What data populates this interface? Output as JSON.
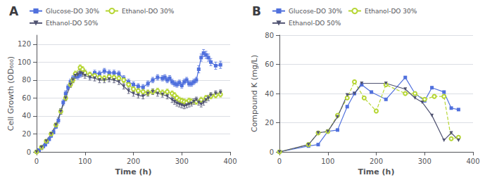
{
  "chart_data": [
    {
      "type": "line",
      "title": "A",
      "xlabel": "Time (h)",
      "ylabel": "Cell Growth (OD₆₀₀)",
      "xlim": [
        0,
        400
      ],
      "xticks": [
        0,
        100,
        200,
        300,
        400
      ],
      "ylim": [
        0,
        130
      ],
      "yticks": [
        0,
        20,
        40,
        60,
        80,
        100,
        120
      ],
      "grid": "y",
      "legend": "upper left",
      "series": [
        {
          "name": "Glucose-DO 30%",
          "marker": "square",
          "line_style": "solid",
          "x": [
            0,
            5,
            10,
            14,
            18,
            22,
            26,
            30,
            35,
            40,
            45,
            50,
            55,
            60,
            65,
            70,
            75,
            80,
            85,
            90,
            95,
            100,
            110,
            120,
            130,
            140,
            150,
            160,
            170,
            180,
            190,
            200,
            210,
            220,
            230,
            240,
            250,
            260,
            265,
            270,
            275,
            280,
            285,
            290,
            295,
            300,
            305,
            310,
            315,
            320,
            325,
            330,
            335,
            340,
            345,
            350,
            355,
            360,
            370,
            380
          ],
          "values": [
            0,
            2,
            4,
            6,
            8,
            11,
            14,
            18,
            22,
            28,
            35,
            45,
            55,
            65,
            72,
            78,
            82,
            85,
            84,
            86,
            90,
            88,
            85,
            88,
            87,
            90,
            88,
            88,
            87,
            82,
            78,
            75,
            73,
            72,
            76,
            80,
            83,
            82,
            83,
            80,
            82,
            78,
            76,
            75,
            77,
            74,
            78,
            80,
            76,
            76,
            78,
            80,
            92,
            105,
            110,
            108,
            105,
            100,
            96,
            97
          ],
          "error": [
            0,
            1,
            1,
            1,
            1,
            1,
            1,
            2,
            2,
            2,
            3,
            3,
            3,
            3,
            3,
            3,
            3,
            3,
            3,
            3,
            3,
            3,
            3,
            3,
            3,
            3,
            3,
            3,
            3,
            3,
            3,
            3,
            3,
            3,
            3,
            3,
            3,
            3,
            3,
            3,
            3,
            3,
            3,
            3,
            3,
            3,
            3,
            3,
            3,
            3,
            3,
            3,
            4,
            4,
            4,
            4,
            4,
            4,
            4,
            4
          ]
        },
        {
          "name": "Ethanol-DO 30%",
          "marker": "open_circle",
          "line_style": "dashed",
          "x": [
            0,
            10,
            20,
            30,
            40,
            50,
            60,
            70,
            75,
            80,
            90,
            95,
            100,
            110,
            120,
            130,
            140,
            150,
            160,
            170,
            180,
            190,
            200,
            210,
            220,
            230,
            240,
            250,
            260,
            270,
            280,
            285,
            290,
            295,
            300,
            305,
            310,
            315,
            320,
            330,
            340,
            350,
            360,
            370,
            380
          ],
          "values": [
            0,
            5,
            12,
            20,
            30,
            45,
            60,
            75,
            80,
            87,
            94,
            92,
            88,
            86,
            85,
            83,
            82,
            84,
            83,
            82,
            80,
            75,
            70,
            68,
            67,
            66,
            67,
            68,
            66,
            67,
            65,
            63,
            60,
            58,
            57,
            56,
            55,
            57,
            56,
            56,
            58,
            60,
            62,
            63,
            64
          ],
          "error": [
            0,
            1,
            1,
            2,
            2,
            3,
            3,
            3,
            3,
            3,
            3,
            3,
            3,
            3,
            3,
            3,
            3,
            3,
            3,
            3,
            3,
            3,
            3,
            3,
            3,
            3,
            3,
            3,
            3,
            3,
            3,
            3,
            3,
            3,
            3,
            3,
            3,
            3,
            3,
            3,
            3,
            3,
            3,
            3,
            3
          ]
        },
        {
          "name": "Ethanol-DO 50%",
          "marker": "triangle_down",
          "line_style": "solid",
          "x": [
            0,
            10,
            20,
            30,
            40,
            50,
            60,
            70,
            75,
            80,
            85,
            90,
            95,
            100,
            110,
            120,
            130,
            140,
            150,
            160,
            170,
            180,
            190,
            200,
            210,
            220,
            230,
            240,
            250,
            260,
            270,
            280,
            285,
            290,
            295,
            300,
            305,
            310,
            315,
            320,
            325,
            330,
            335,
            340,
            345,
            350,
            355,
            360,
            370,
            380
          ],
          "values": [
            0,
            5,
            12,
            20,
            30,
            45,
            60,
            75,
            80,
            85,
            86,
            88,
            87,
            85,
            83,
            82,
            80,
            80,
            81,
            80,
            78,
            73,
            68,
            65,
            63,
            62,
            65,
            67,
            65,
            64,
            62,
            58,
            56,
            54,
            53,
            52,
            51,
            52,
            53,
            54,
            56,
            58,
            55,
            53,
            55,
            58,
            60,
            63,
            65,
            66
          ],
          "error": [
            0,
            1,
            1,
            2,
            2,
            3,
            3,
            3,
            3,
            3,
            3,
            3,
            3,
            3,
            3,
            3,
            3,
            3,
            3,
            3,
            3,
            3,
            3,
            3,
            3,
            3,
            3,
            3,
            3,
            3,
            3,
            3,
            3,
            3,
            3,
            3,
            3,
            3,
            3,
            3,
            3,
            3,
            3,
            3,
            3,
            3,
            3,
            3,
            3,
            3
          ]
        }
      ]
    },
    {
      "type": "line",
      "title": "B",
      "xlabel": "Time (h)",
      "ylabel": "Compound K (mg/L)",
      "xlim": [
        0,
        400
      ],
      "xticks": [
        0,
        100,
        200,
        300,
        400
      ],
      "ylim": [
        0,
        80
      ],
      "yticks": [
        0,
        20,
        40,
        60,
        80
      ],
      "grid": "y",
      "legend": "upper left",
      "series": [
        {
          "name": "Glucose-DO 30%",
          "marker": "square",
          "line_style": "solid",
          "x": [
            0,
            60,
            80,
            100,
            120,
            140,
            155,
            170,
            190,
            220,
            260,
            280,
            300,
            315,
            340,
            355,
            370
          ],
          "values": [
            0,
            4,
            5,
            14,
            15,
            31,
            40,
            46,
            41,
            36,
            51,
            40,
            35,
            44,
            41,
            30,
            29
          ]
        },
        {
          "name": "Ethanol-DO 30%",
          "marker": "open_circle",
          "line_style": "dashed",
          "x": [
            0,
            60,
            80,
            100,
            120,
            140,
            155,
            175,
            200,
            220,
            260,
            280,
            300,
            320,
            340,
            355,
            370
          ],
          "values": [
            0,
            5,
            13,
            14,
            25,
            37,
            48,
            37,
            28,
            46,
            40,
            40,
            36,
            38,
            38,
            9,
            10
          ]
        },
        {
          "name": "Ethanol-DO 50%",
          "marker": "triangle_down",
          "line_style": "solid",
          "x": [
            0,
            60,
            80,
            100,
            120,
            140,
            155,
            170,
            220,
            260,
            280,
            295,
            315,
            340,
            355,
            370
          ],
          "values": [
            0,
            5,
            13,
            14,
            24,
            39,
            40,
            47,
            47,
            43,
            37,
            34,
            25,
            8,
            13,
            8
          ]
        }
      ]
    }
  ]
}
